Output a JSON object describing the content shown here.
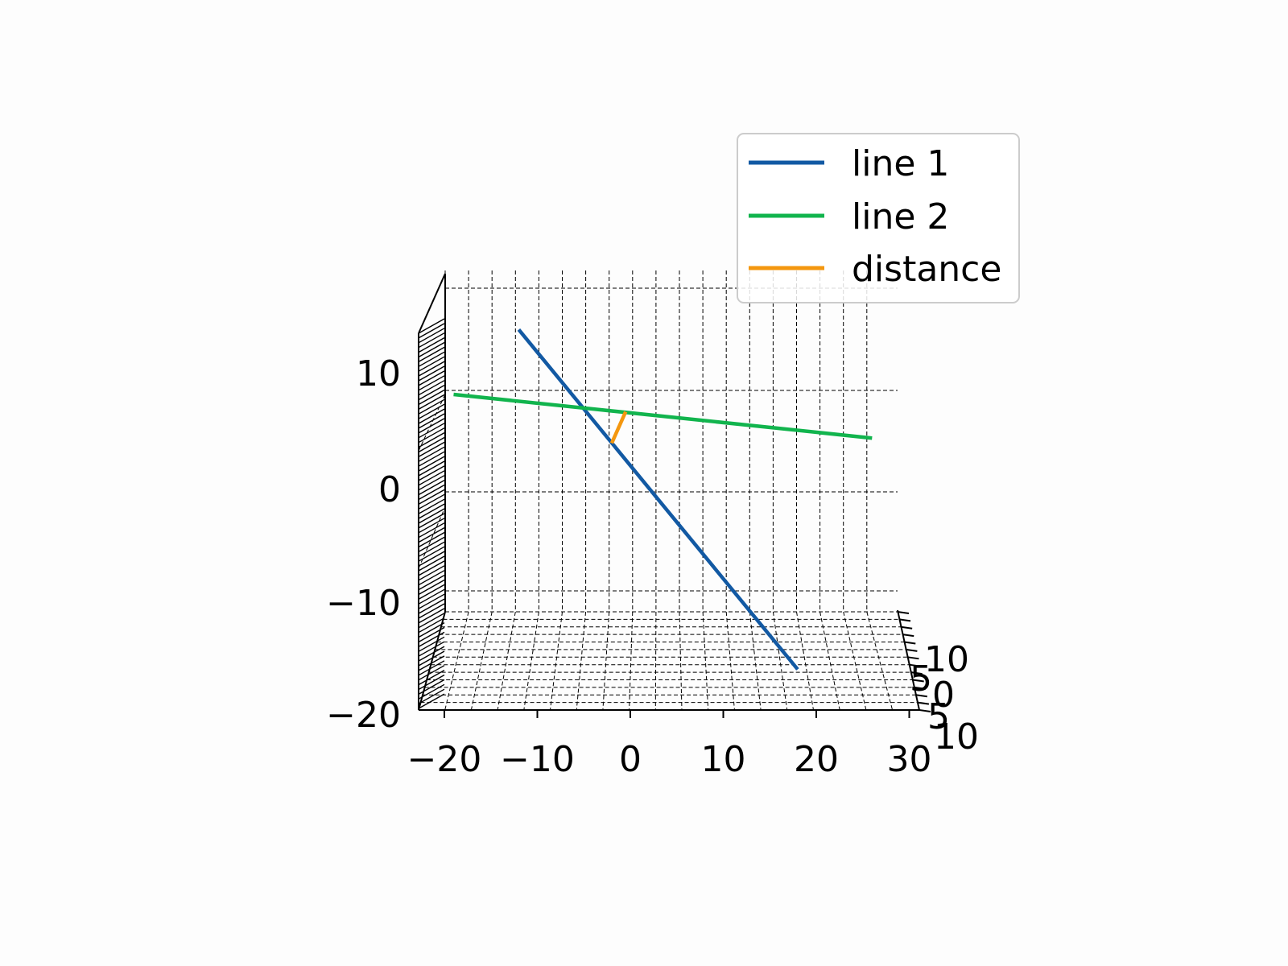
{
  "chart_data": {
    "type": "line3d",
    "title": "",
    "xlabel": "",
    "ylabel": "",
    "zlabel": "",
    "x_ticks": [
      "−20",
      "−10",
      "0",
      "10",
      "20",
      "30"
    ],
    "y_ticks": [
      "10",
      "5",
      "0",
      "5",
      "10"
    ],
    "z_ticks": [
      "10",
      "0",
      "−10",
      "−20"
    ],
    "xlim": [
      -23,
      30
    ],
    "zlim": [
      -20,
      18
    ],
    "grid": true,
    "legend_position": "top-right",
    "series": [
      {
        "name": "line 1",
        "color": "#1259a3",
        "points": [
          [
            -12,
            0,
            16
          ],
          [
            18,
            0,
            -17.5
          ]
        ]
      },
      {
        "name": "line 2",
        "color": "#11b44d",
        "points": [
          [
            -19,
            0,
            9.6
          ],
          [
            26,
            0,
            5.3
          ]
        ]
      },
      {
        "name": "distance",
        "color": "#f4970f",
        "points": [
          [
            -0.5,
            0,
            7.9
          ],
          [
            -2,
            0,
            4.8
          ]
        ]
      }
    ]
  }
}
